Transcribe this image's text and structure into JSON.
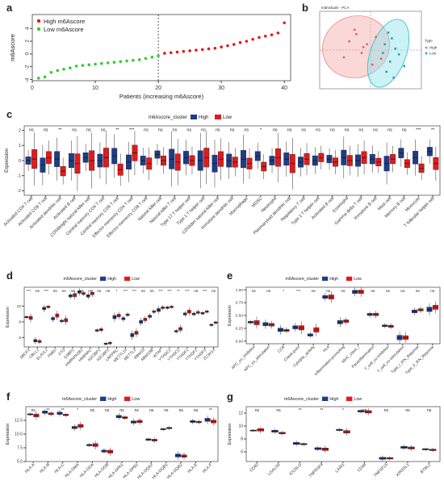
{
  "panels": {
    "a": {
      "label": "a",
      "legend": [
        {
          "name": "High m6Ascore",
          "color": "#e31a1c"
        },
        {
          "name": "Low m6Ascore",
          "color": "#33cc33"
        }
      ],
      "xlabel": "Patients (increasing m6Ascore)",
      "ylabel": "m6Ascore",
      "xticks": [
        "0",
        "10",
        "20",
        "30",
        "40"
      ],
      "yticks": [
        "4",
        "2",
        "0",
        "-2",
        "-4"
      ]
    },
    "b": {
      "label": "b",
      "title": "Individuals - PCA",
      "legend_title": "Type",
      "legend": [
        {
          "name": "High",
          "color": "#f08080"
        },
        {
          "name": "Low",
          "color": "#20c0d0"
        }
      ]
    },
    "c": {
      "label": "c",
      "legend_title": "m6Ascore_cluster",
      "legend": [
        {
          "name": "High",
          "color": "#1f3c88"
        },
        {
          "name": "Low",
          "color": "#e31a1c"
        }
      ],
      "ylabel": "Expression",
      "yticks": [
        "2",
        "1",
        "0",
        "-1",
        "-2"
      ]
    },
    "d": {
      "label": "d",
      "legend_title": "m6Ascore_cluster",
      "legend": [
        {
          "name": "High",
          "color": "#1f3c88"
        },
        {
          "name": "Low",
          "color": "#e31a1c"
        }
      ],
      "ylabel": "Expression",
      "yticks": [
        "10",
        "8",
        "6"
      ]
    },
    "e": {
      "label": "e",
      "legend_title": "m6Ascore_cluster",
      "legend": [
        {
          "name": "High",
          "color": "#1f3c88"
        },
        {
          "name": "Low",
          "color": "#e31a1c"
        }
      ],
      "ylabel": "Expression",
      "yticks": [
        "1.00",
        "0.75",
        "0.50",
        "0.25",
        "0.00"
      ]
    },
    "f": {
      "label": "f",
      "legend_title": "m6Ascore_cluster",
      "legend": [
        {
          "name": "High",
          "color": "#1f3c88"
        },
        {
          "name": "Low",
          "color": "#e31a1c"
        }
      ],
      "ylabel": "Expression",
      "yticks": [
        "12.5",
        "10.0",
        "7.5",
        "5.0"
      ]
    },
    "g": {
      "label": "g",
      "legend_title": "m6Ascore_cluster",
      "legend": [
        {
          "name": "High",
          "color": "#1f3c88"
        },
        {
          "name": "Low",
          "color": "#e31a1c"
        }
      ],
      "ylabel": "Expression",
      "yticks": [
        "12",
        "10",
        "8",
        "6"
      ]
    }
  },
  "chart_data": [
    {
      "panel": "a",
      "type": "scatter",
      "xlabel": "Patients (increasing m6Ascore)",
      "ylabel": "m6Ascore",
      "xlim": [
        0,
        41
      ],
      "ylim": [
        -4.2,
        6.2
      ],
      "cutoff_x": 20,
      "series": [
        {
          "name": "Low m6Ascore",
          "x": [
            1,
            2,
            3,
            4,
            5,
            6,
            7,
            8,
            9,
            10,
            11,
            12,
            13,
            14,
            15,
            16,
            17,
            18,
            19,
            20
          ],
          "y": [
            -3.8,
            -3.6,
            -2.9,
            -2.6,
            -2.4,
            -2.2,
            -1.9,
            -1.8,
            -1.7,
            -1.6,
            -1.5,
            -1.4,
            -1.3,
            -1.2,
            -1.1,
            -1.0,
            -0.9,
            -0.7,
            -0.5,
            -0.3
          ]
        },
        {
          "name": "High m6Ascore",
          "x": [
            21,
            22,
            23,
            24,
            25,
            26,
            27,
            28,
            29,
            30,
            31,
            32,
            33,
            34,
            35,
            36,
            37,
            38,
            39,
            40
          ],
          "y": [
            0.1,
            0.2,
            0.3,
            0.4,
            0.5,
            0.6,
            0.7,
            0.8,
            0.9,
            1.1,
            1.3,
            1.5,
            1.8,
            2.0,
            2.3,
            2.6,
            2.8,
            3.0,
            3.3,
            4.9
          ]
        }
      ]
    },
    {
      "panel": "b",
      "type": "scatter",
      "title": "Individuals - PCA",
      "series": [
        {
          "name": "High",
          "x": [
            -1.2,
            -0.8,
            -0.5,
            -0.2,
            0.3,
            -1.5,
            0.6,
            -0.9,
            0.1,
            -0.4
          ],
          "y": [
            0.6,
            1.1,
            -0.2,
            0.4,
            0.9,
            -0.5,
            -0.6,
            1.4,
            -1.0,
            0.2
          ]
        },
        {
          "name": "Low",
          "x": [
            0.8,
            1.1,
            1.4,
            0.9,
            1.6,
            1.2,
            0.7,
            1.9,
            1.3,
            1.0
          ],
          "y": [
            0.4,
            -0.8,
            0.1,
            -1.5,
            -0.3,
            0.8,
            -0.2,
            -1.1,
            -1.9,
            1.2
          ]
        }
      ]
    },
    {
      "panel": "c",
      "type": "box",
      "ylabel": "Expression",
      "ylim": [
        -2.3,
        2.3
      ],
      "categories": [
        "Activated CD4 T cell",
        "Activated CD8 T cell",
        "Activated dendritic cell",
        "Activated B cell",
        "CD56bright natural killer cell",
        "Central memory CD4 T cell",
        "Central memory CD8 T cell",
        "Effector memeory CD4 T cell",
        "Effector memeory CD8 T cell",
        "Natural killer cell",
        "Natural killer T cell",
        "Type 17 T helper cell",
        "Type 1 T helper cell",
        "CD56dim natural killer cell",
        "Immature dendritic cell",
        "Macrophage",
        "MDSC",
        "Neutrophil",
        "Plasmacytoid dendritic cell",
        "Regulatory T cell",
        "Type 2 T helper cell",
        "Activated B cell",
        "Eosinophil",
        "Gamma delta T cell",
        "Immature B cell",
        "Mast cell",
        "Memory B cell",
        "Monocyte",
        "T follicular helper cell"
      ],
      "significance": [
        "ns",
        "ns",
        "**",
        "ns",
        "ns",
        "ns",
        "**",
        "***",
        "ns",
        "ns",
        "ns",
        "ns",
        "ns",
        "ns",
        "ns",
        "ns",
        "*",
        "ns",
        "ns",
        "ns",
        "ns",
        "ns",
        "ns",
        "ns",
        "ns",
        "ns",
        "ns",
        "***",
        "**"
      ],
      "series": [
        {
          "name": "High",
          "median": [
            0.0,
            -0.3,
            0.1,
            0.0,
            0.2,
            0.0,
            0.3,
            -0.1,
            0.0,
            0.4,
            0.1,
            0.2,
            0.0,
            -0.2,
            0.0,
            0.1,
            0.3,
            0.0,
            0.1,
            -0.1,
            0.0,
            0.1,
            0.2,
            0.0,
            0.1,
            -0.2,
            0.5,
            0.2,
            0.6
          ]
        },
        {
          "name": "Low",
          "median": [
            0.1,
            0.2,
            -0.7,
            -0.2,
            0.0,
            0.2,
            -0.6,
            0.5,
            -0.2,
            0.0,
            -0.1,
            0.0,
            0.2,
            0.1,
            -0.1,
            -0.2,
            -0.4,
            0.2,
            -0.2,
            0.1,
            0.2,
            -0.1,
            0.0,
            0.2,
            -0.1,
            0.1,
            -0.2,
            -0.5,
            -0.2
          ]
        }
      ]
    },
    {
      "panel": "d",
      "type": "box",
      "ylabel": "Expression",
      "ylim": [
        4.8,
        12.4
      ],
      "categories": [
        "ABCF1",
        "CBLL1",
        "ELAVL1",
        "FMR1",
        "FTO",
        "G3BP1",
        "HNRNPA2B1",
        "HNRNPC",
        "IGF2BP1",
        "IGF2BP2",
        "LRPPRC",
        "METTL14",
        "METTL3",
        "RBM15",
        "RBM15B",
        "WTAP",
        "YTHDC1",
        "YTHDC2",
        "YTHDF1",
        "YTHDF2",
        "YTHDF3",
        "ZC3H13"
      ],
      "significance": [
        "***",
        "ns",
        "***",
        "ns",
        "ns",
        "ns",
        "ns",
        "ns",
        "ns",
        "ns",
        "*",
        "***",
        "***",
        "ns",
        "ns",
        "***",
        "***",
        "**",
        "***",
        "ns",
        "***",
        "ns"
      ],
      "series": [
        {
          "name": "High",
          "median": [
            8.6,
            5.6,
            9.7,
            8.4,
            8.1,
            11.3,
            11.8,
            11.3,
            6.9,
            5.2,
            8.6,
            8.4,
            6.3,
            8.0,
            8.7,
            9.5,
            9.8,
            6.8,
            9.0,
            9.0,
            9.1,
            7.6
          ]
        },
        {
          "name": "Low",
          "median": [
            8.5,
            5.5,
            9.9,
            8.8,
            8.2,
            11.4,
            11.6,
            11.6,
            7.0,
            5.3,
            8.8,
            8.9,
            6.6,
            8.3,
            9.3,
            9.8,
            9.9,
            7.1,
            9.3,
            9.2,
            9.3,
            7.9
          ]
        }
      ]
    },
    {
      "panel": "e",
      "type": "box",
      "ylabel": "Expression",
      "ylim": [
        -0.05,
        1.05
      ],
      "categories": [
        "APC_co_inhibition",
        "APC_co_stimulation",
        "CCR",
        "Check-point",
        "Cytolytic_activity",
        "HLA",
        "Inflammation-promoting",
        "MHC_class_I",
        "Parainflammation",
        "T_cell_co-inhibition",
        "T_cell_co-stimulation",
        "Type_I_IFN_Reponse",
        "Type_II_IFN_Reponse"
      ],
      "significance": [
        "ns",
        "ns",
        "*",
        "***",
        "ns",
        "ns",
        "ns",
        "ns",
        "ns",
        "ns",
        "ns",
        "ns",
        "ns"
      ],
      "series": [
        {
          "name": "High",
          "median": [
            0.37,
            0.33,
            0.22,
            0.27,
            0.12,
            0.86,
            0.37,
            0.96,
            0.52,
            0.3,
            0.07,
            0.58,
            0.62
          ]
        },
        {
          "name": "Low",
          "median": [
            0.36,
            0.32,
            0.21,
            0.26,
            0.22,
            0.86,
            0.39,
            0.96,
            0.52,
            0.29,
            0.07,
            0.61,
            0.66
          ]
        }
      ]
    },
    {
      "panel": "f",
      "type": "box",
      "ylabel": "Expression",
      "ylim": [
        5.0,
        15.0
      ],
      "categories": [
        "HLA-A",
        "HLA-B",
        "HLA-C",
        "HLA-DMA",
        "HLA-DOA",
        "HLA-DOB",
        "HLA-DPA1",
        "HLA-DPB1",
        "HLA-DQA2",
        "HLA-DQB1",
        "HLA-DQB2",
        "HLA-E",
        "HLA-F"
      ],
      "significance": [
        "ns",
        "**",
        "**",
        "*",
        "ns",
        "ns",
        "ns",
        "ns",
        "ns",
        "ns",
        "ns",
        "ns",
        "**"
      ],
      "series": [
        {
          "name": "High",
          "median": [
            13.6,
            14.0,
            13.8,
            11.2,
            8.0,
            6.9,
            13.2,
            12.2,
            9.0,
            10.9,
            6.1,
            12.3,
            12.6
          ]
        },
        {
          "name": "Low",
          "median": [
            13.4,
            13.7,
            13.5,
            11.5,
            8.0,
            6.8,
            13.0,
            12.3,
            8.9,
            11.1,
            6.0,
            12.2,
            12.3
          ]
        }
      ]
    },
    {
      "panel": "g",
      "type": "box",
      "ylabel": "Expression",
      "ylim": [
        4.5,
        13.0
      ],
      "categories": [
        "CD40",
        "LGALS9",
        "ICOSLG",
        "TNFRSF4",
        "LAIR1",
        "CD48",
        "TNFSF15",
        "KIR2DL1",
        "BTNL2"
      ],
      "significance": [
        "ns",
        "ns",
        "**",
        "**",
        "*",
        "ns",
        "ns",
        "ns",
        "ns"
      ],
      "series": [
        {
          "name": "High",
          "median": [
            9.3,
            9.2,
            7.3,
            6.5,
            9.4,
            12.3,
            5.0,
            6.7,
            6.4
          ]
        },
        {
          "name": "Low",
          "median": [
            9.4,
            8.9,
            7.2,
            6.4,
            9.1,
            12.2,
            5.0,
            6.6,
            6.3
          ]
        }
      ]
    }
  ]
}
